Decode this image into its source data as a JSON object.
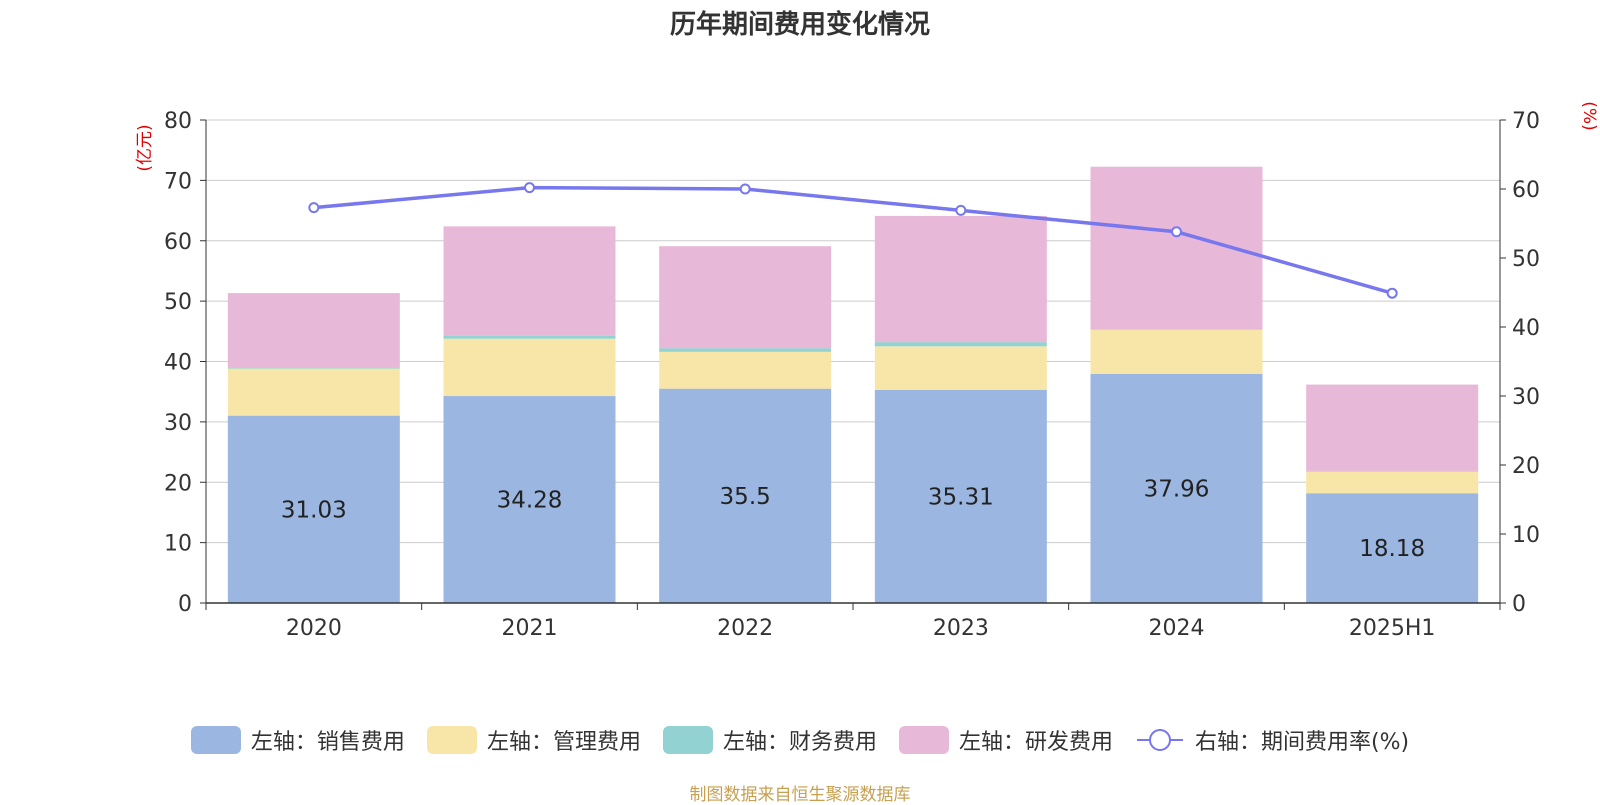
{
  "chart_data": {
    "type": "bar",
    "stacked": true,
    "title": "历年期间费用变化情况",
    "categories": [
      "2020",
      "2021",
      "2022",
      "2023",
      "2024",
      "2025H1"
    ],
    "left_axis": {
      "unit_label": "(亿元)",
      "ylim": [
        0,
        80
      ],
      "ticks": [
        "0",
        "10",
        "20",
        "30",
        "40",
        "50",
        "60",
        "70",
        "80"
      ]
    },
    "right_axis": {
      "unit_label": "(%)",
      "ylim": [
        0,
        70
      ],
      "ticks": [
        "0",
        "10",
        "20",
        "30",
        "40",
        "50",
        "60",
        "70"
      ]
    },
    "grid": true,
    "legend_position": "bottom",
    "series": [
      {
        "name": "左轴：销售费用",
        "type": "bar",
        "axis": "left",
        "color": "#9bb7e1",
        "values": [
          31.03,
          34.28,
          35.5,
          35.31,
          37.96,
          18.18
        ],
        "labels": [
          "31.03",
          "34.28",
          "35.5",
          "35.31",
          "37.96",
          "18.18"
        ]
      },
      {
        "name": "左轴：管理费用",
        "type": "bar",
        "axis": "left",
        "color": "#f8e6a8",
        "values": [
          7.8,
          9.5,
          6.1,
          7.2,
          7.3,
          3.6
        ]
      },
      {
        "name": "左轴：财务费用",
        "type": "bar",
        "axis": "left",
        "color": "#93d2d2",
        "values": [
          0.1,
          0.5,
          0.6,
          0.7,
          0.1,
          0.1
        ]
      },
      {
        "name": "左轴：研发费用",
        "type": "bar",
        "axis": "left",
        "color": "#e8b8d8",
        "values": [
          12.4,
          18.1,
          16.9,
          20.9,
          26.9,
          14.3
        ]
      },
      {
        "name": "右轴：期间费用率(%)",
        "type": "line",
        "axis": "right",
        "color": "#7777ee",
        "values": [
          57.3,
          60.2,
          60.0,
          56.9,
          53.8,
          44.9
        ]
      }
    ]
  },
  "source_note": "制图数据来自恒生聚源数据库"
}
